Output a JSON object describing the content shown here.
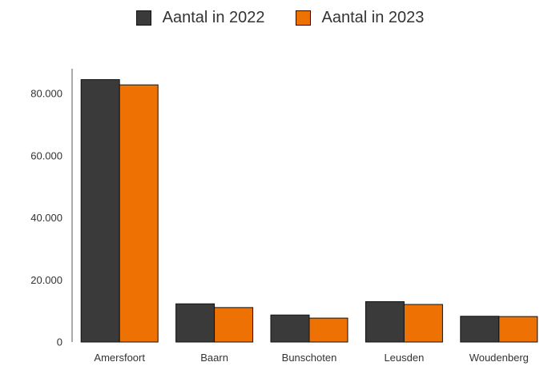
{
  "chart_data": {
    "type": "bar",
    "title": "",
    "xlabel": "",
    "ylabel": "",
    "categories": [
      "Amersfoort",
      "Baarn",
      "Bunschoten",
      "Leusden",
      "Woudenberg"
    ],
    "series": [
      {
        "name": "Aantal in 2022",
        "color": "#3a3a3a",
        "values": [
          84500,
          12300,
          8700,
          13000,
          8300
        ]
      },
      {
        "name": "Aantal in 2023",
        "color": "#ee7203",
        "values": [
          82800,
          11100,
          7700,
          12100,
          8200
        ]
      }
    ],
    "ylim": [
      0,
      88000
    ],
    "yticks": [
      0,
      20000,
      40000,
      60000,
      80000
    ],
    "ytick_labels": [
      "0",
      "20.000",
      "40.000",
      "60.000",
      "80.000"
    ],
    "grid": false,
    "legend_position": "top"
  }
}
